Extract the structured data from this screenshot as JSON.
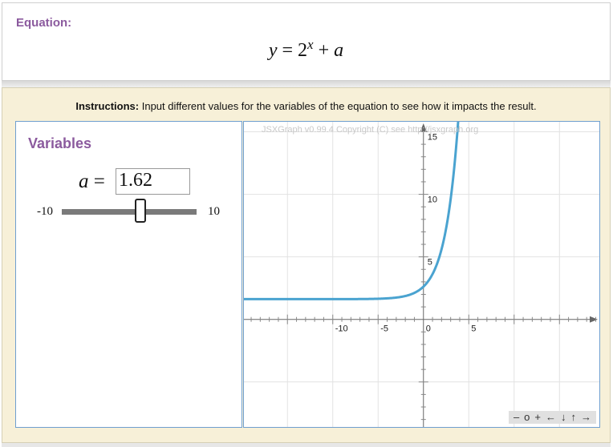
{
  "equation": {
    "label": "Equation:",
    "y": "y",
    "eq": "=",
    "base": "2",
    "exponent": "x",
    "plus": "+",
    "a": "a"
  },
  "instructions": {
    "bold": "Instructions:",
    "text": "Input different values for the variables of the equation to see how it impacts the result."
  },
  "variables": {
    "title": "Variables",
    "a_label": "a",
    "equals": "=",
    "a_value": "1.62",
    "slider_min": "-10",
    "slider_max": "10",
    "slider_value": 1.62
  },
  "graph": {
    "copyright": "JSXGraph v0.99.4 Copyright (C) see http://jsxgraph.org",
    "nav": [
      "–",
      "o",
      "+",
      "←",
      "↓",
      "↑",
      "→"
    ],
    "curve_color": "#4aa3d0"
  },
  "chart_data": {
    "type": "line",
    "function": "y = 2^x + a",
    "a": 1.62,
    "xlim": [
      -19.8,
      19.4
    ],
    "ylim": [
      -8.6,
      15.8
    ],
    "x_tick_labels": [
      "-10",
      "-5",
      "0",
      "5"
    ],
    "y_tick_labels": [
      "5",
      "10",
      "15"
    ],
    "grid": true
  }
}
